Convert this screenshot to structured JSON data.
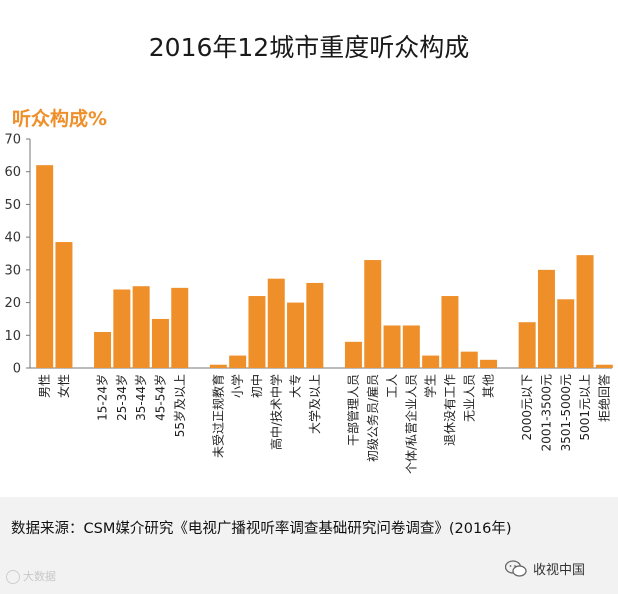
{
  "page": {
    "title": "2016年12城市重度听众构成",
    "subtitle": "听众构成%",
    "source": "数据来源：CSM媒介研究《电视广播视听率调查基础研究问卷调查》(2016年)",
    "watermark_left": "大数据",
    "watermark_right": "收视中国"
  },
  "colors": {
    "bar": "#ef8f2a",
    "subtitle": "#ef8f2a",
    "axis": "#555555"
  },
  "chart_data": {
    "type": "bar",
    "title": "2016年12城市重度听众构成",
    "ylabel": "听众构成%",
    "xlabel": "",
    "ylim": [
      0,
      70
    ],
    "yticks": [
      0,
      10,
      20,
      30,
      40,
      50,
      60,
      70
    ],
    "grid": false,
    "categories": [
      "男性",
      "女性",
      "",
      "15-24岁",
      "25-34岁",
      "35-44岁",
      "45-54岁",
      "55岁及以上",
      "",
      "未受过正规教育",
      "小学",
      "初中",
      "高中/技术中学",
      "大专",
      "大学及以上",
      "",
      "干部管理人员",
      "初级公务员/雇员",
      "工人",
      "个体/私营企业人员",
      "学生",
      "退休没有工作",
      "无业人员",
      "其他",
      "",
      "2000元以下",
      "2001-3500元",
      "3501-5000元",
      "5001元以上",
      "拒绝回答"
    ],
    "values": [
      62,
      38.5,
      null,
      11,
      24,
      25,
      15,
      24.5,
      null,
      1,
      3.8,
      22,
      27.3,
      20,
      26,
      null,
      8,
      33,
      13,
      13,
      3.8,
      22,
      5,
      2.5,
      null,
      14,
      30,
      21,
      34.5,
      1
    ]
  }
}
